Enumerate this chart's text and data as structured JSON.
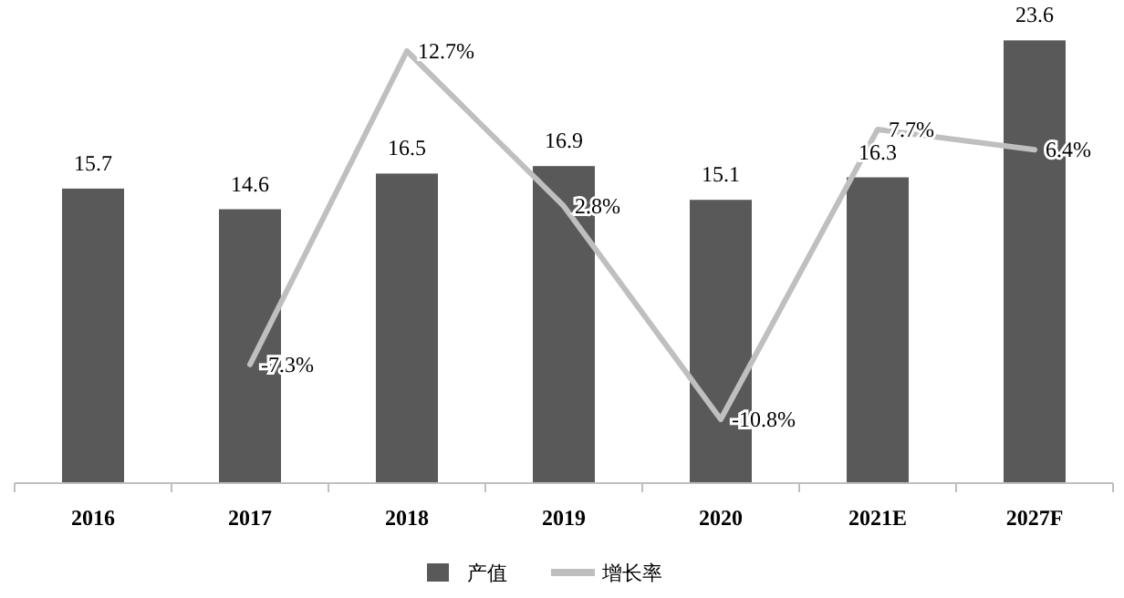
{
  "chart_data": {
    "type": "bar",
    "categories": [
      "2016",
      "2017",
      "2018",
      "2019",
      "2020",
      "2021E",
      "2027F"
    ],
    "series": [
      {
        "name": "产值",
        "color": "#595959",
        "values": [
          15.7,
          14.6,
          16.5,
          16.9,
          15.1,
          16.3,
          23.6
        ]
      },
      {
        "name": "增长率",
        "type": "line",
        "axis": "y2",
        "color": "#bfbfbf",
        "values": [
          null,
          -7.3,
          12.7,
          2.8,
          -10.8,
          7.7,
          6.4
        ],
        "value_labels": [
          null,
          "-7.3%",
          "12.7%",
          "2.8%",
          "-10.8%",
          "7.7%",
          "6.4%"
        ]
      }
    ],
    "data_labels": true,
    "legend": "bottom",
    "tick_labels": "x",
    "marker": "none"
  }
}
